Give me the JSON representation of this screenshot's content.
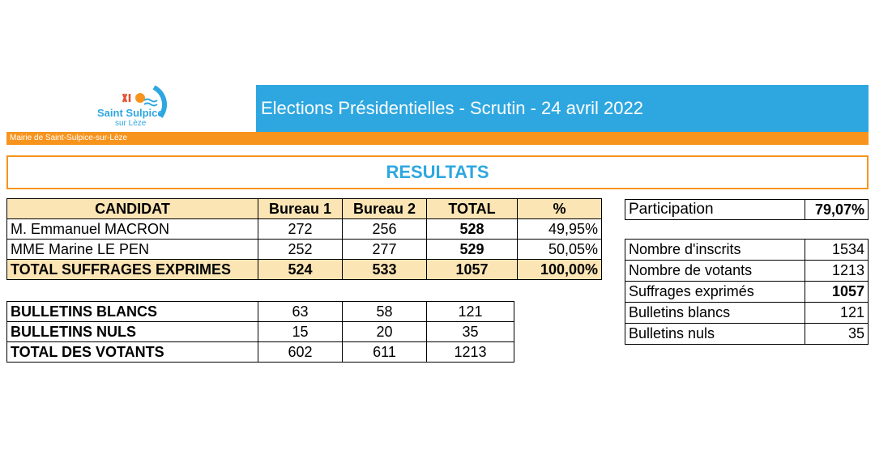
{
  "logo": {
    "name_line1": "Saint Sulpice",
    "name_line2": "sur Lèze"
  },
  "header": {
    "title": "Elections Présidentielles - Scrutin - 24 avril 2022",
    "mairie": "Mairie de Saint-Sulpice-sur-Lèze",
    "results_heading": "RESULTATS"
  },
  "colors": {
    "blue": "#2ea7e0",
    "orange": "#f7941d",
    "header_fill": "#fbe5b5"
  },
  "candidates_table": {
    "headers": [
      "CANDIDAT",
      "Bureau 1",
      "Bureau 2",
      "TOTAL",
      "%"
    ],
    "rows": [
      {
        "name": "M. Emmanuel MACRON",
        "b1": "272",
        "b2": "256",
        "total": "528",
        "pct": "49,95%"
      },
      {
        "name": "MME Marine LE PEN",
        "b1": "252",
        "b2": "277",
        "total": "529",
        "pct": "50,05%"
      }
    ],
    "total_row": {
      "name": "TOTAL SUFFRAGES EXPRIMES",
      "b1": "524",
      "b2": "533",
      "total": "1057",
      "pct": "100,00%"
    }
  },
  "bulletins_table": {
    "rows": [
      {
        "name": "BULLETINS BLANCS",
        "b1": "63",
        "b2": "58",
        "total": "121"
      },
      {
        "name": "BULLETINS NULS",
        "b1": "15",
        "b2": "20",
        "total": "35"
      },
      {
        "name": "TOTAL DES VOTANTS",
        "b1": "602",
        "b2": "611",
        "total": "1213"
      }
    ]
  },
  "participation": {
    "label": "Participation",
    "value": "79,07%"
  },
  "stats_table": {
    "rows": [
      {
        "label": "Nombre d'inscrits",
        "value": "1534"
      },
      {
        "label": "Nombre de votants",
        "value": "1213"
      },
      {
        "label": "Suffrages exprimés",
        "value": "1057"
      },
      {
        "label": "Bulletins blancs",
        "value": "121"
      },
      {
        "label": "Bulletins nuls",
        "value": "35"
      }
    ]
  }
}
